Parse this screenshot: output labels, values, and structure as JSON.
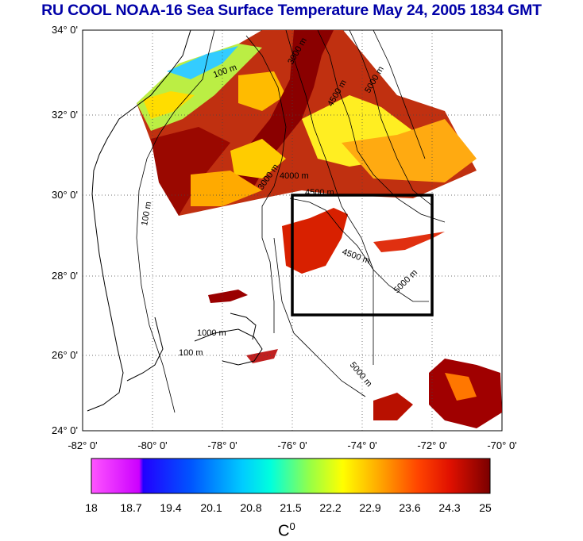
{
  "title": "RU COOL  NOAA-16 Sea Surface Temperature May 24, 2005 1834 GMT",
  "axes": {
    "lat_labels": [
      "34° 0'",
      "32° 0'",
      "30° 0'",
      "28° 0'",
      "26° 0'",
      "24° 0'"
    ],
    "lon_labels": [
      "-82° 0'",
      "-80° 0'",
      "-78° 0'",
      "-76° 0'",
      "-74° 0'",
      "-72° 0'",
      "-70° 0'"
    ]
  },
  "colorbar": {
    "ticks": [
      "18",
      "18.7",
      "19.4",
      "20.1",
      "20.8",
      "21.5",
      "22.2",
      "22.9",
      "23.6",
      "24.3",
      "25"
    ],
    "unit": "C",
    "unit_sup": "0"
  },
  "contour_labels": {
    "m100": "100 m",
    "m1000": "1000 m",
    "m3000": "3000 m",
    "m4000": "4000 m",
    "m4500": "4500 m",
    "m5000": "5000 m",
    "m3000r": "3000 m",
    "m4500r": "4500 m",
    "m5000r": "5000 m"
  },
  "colors": {
    "title": "#0000a8",
    "box": "#000000",
    "coast": "#000000"
  }
}
